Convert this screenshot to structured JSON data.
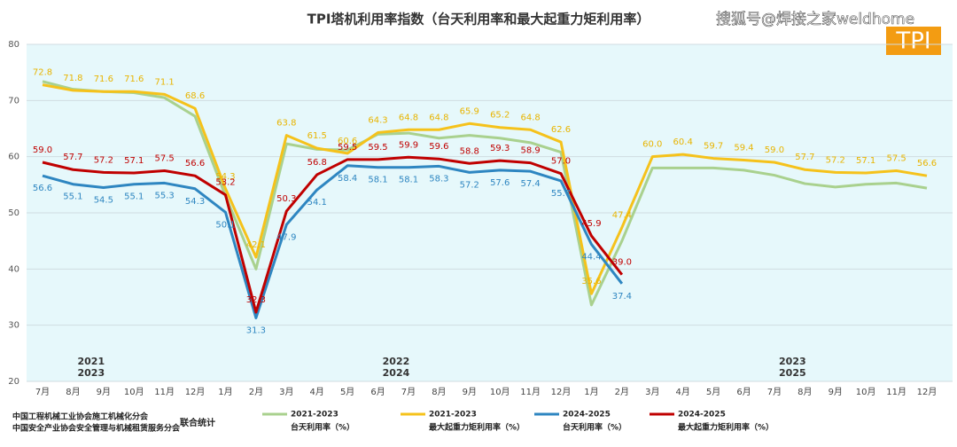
{
  "chart_data": {
    "type": "line",
    "title": "TPI塔机利用率指数（台天利用率和最大起重力矩利用率）",
    "watermark": "搜狐号@焊接之家weldhome",
    "logo": "TPI",
    "categories": [
      "7月",
      "8月",
      "9月",
      "10月",
      "11月",
      "12月",
      "1月",
      "2月",
      "3月",
      "4月",
      "5月",
      "6月",
      "7月",
      "8月",
      "9月",
      "10月",
      "11月",
      "12月",
      "1月",
      "2月",
      "3月",
      "4月",
      "5月",
      "6月",
      "7月",
      "8月",
      "9月",
      "10月",
      "11月",
      "12月"
    ],
    "year_annotations": [
      {
        "index": 2,
        "lines": [
          "2021",
          "2023"
        ]
      },
      {
        "index": 12,
        "lines": [
          "2022",
          "2024"
        ]
      },
      {
        "index": 25,
        "lines": [
          "2023",
          "2025"
        ]
      }
    ],
    "ylim": [
      20,
      80
    ],
    "yticks": [
      20,
      30,
      40,
      50,
      60,
      70,
      80
    ],
    "grid": true,
    "series": [
      {
        "name": "2021-2023",
        "metric": "台天利用率（%）",
        "color": "#a9d18e",
        "label_position": "none",
        "values": [
          73.4,
          72.0,
          71.6,
          71.4,
          70.5,
          67.2,
          53.0,
          40.0,
          62.3,
          61.3,
          61.2,
          64.0,
          64.2,
          63.3,
          63.8,
          63.3,
          62.5,
          60.8,
          33.6,
          45.0,
          58.0,
          58.0,
          58.0,
          57.6,
          56.7,
          55.2,
          54.6,
          55.1,
          55.3,
          54.4
        ]
      },
      {
        "name": "2021-2023",
        "metric": "最大起重力矩利用率（%）",
        "color": "#f5c21b",
        "label_position": "above",
        "label_color": "#e8b400",
        "values": [
          72.8,
          71.8,
          71.6,
          71.6,
          71.1,
          68.6,
          54.3,
          42.1,
          63.8,
          61.5,
          60.6,
          64.3,
          64.8,
          64.8,
          65.9,
          65.2,
          64.8,
          62.6,
          35.6,
          47.4,
          60.0,
          60.4,
          59.7,
          59.4,
          59.0,
          57.7,
          57.2,
          57.1,
          57.5,
          56.6
        ],
        "value_labels": [
          "72.8",
          "71.8",
          "71.6",
          "71.6",
          "71.1",
          "68.6",
          "54.3",
          "42.1",
          "63.8",
          "61.5",
          "60.6",
          "64.3",
          "64.8",
          "64.8",
          "65.9",
          "65.2",
          "64.8",
          "62.6",
          "35.6",
          "47.4",
          "60.0",
          "60.4",
          "59.7",
          "59.4",
          "59.0",
          "57.7",
          "57.2",
          "57.1",
          "57.5",
          "56.6"
        ]
      },
      {
        "name": "2024-2025",
        "metric": "台天利用率（%）",
        "color": "#2e86c1",
        "label_position": "below",
        "label_color": "#2e86c1",
        "values": [
          56.6,
          55.1,
          54.5,
          55.1,
          55.3,
          54.3,
          50.1,
          31.3,
          47.9,
          54.1,
          58.4,
          58.1,
          58.1,
          58.3,
          57.2,
          57.6,
          57.4,
          55.7,
          44.4,
          37.4,
          null,
          null,
          null,
          null,
          null,
          null,
          null,
          null,
          null,
          null
        ],
        "value_labels": [
          "56.6",
          "55.1",
          "54.5",
          "55.1",
          "55.3",
          "54.3",
          "50.1",
          "31.3",
          "47.9",
          "54.1",
          "58.4",
          "58.1",
          "58.1",
          "58.3",
          "57.2",
          "57.6",
          "57.4",
          "55.7",
          "44.4",
          "37.4",
          null,
          null,
          null,
          null,
          null,
          null,
          null,
          null,
          null,
          null
        ]
      },
      {
        "name": "2024-2025",
        "metric": "最大起重力矩利用率（%）",
        "color": "#c00000",
        "label_position": "above",
        "label_color": "#c00000",
        "values": [
          59.0,
          57.7,
          57.2,
          57.1,
          57.5,
          56.6,
          53.2,
          32.3,
          50.3,
          56.8,
          59.5,
          59.5,
          59.9,
          59.6,
          58.8,
          59.3,
          58.9,
          57.0,
          45.9,
          39.0,
          null,
          null,
          null,
          null,
          null,
          null,
          null,
          null,
          null,
          null
        ],
        "value_labels": [
          "59.0",
          "57.7",
          "57.2",
          "57.1",
          "57.5",
          "56.6",
          "53.2",
          "32.3",
          "50.3",
          "56.8",
          "59.5",
          "59.5",
          "59.9",
          "59.6",
          "58.8",
          "59.3",
          "58.9",
          "57.0",
          "45.9",
          "39.0",
          null,
          null,
          null,
          null,
          null,
          null,
          null,
          null,
          null,
          null
        ]
      }
    ],
    "source": [
      "中国工程机械工业协会施工机械化分会",
      "中国安全产业协会安全管理与机械租赁服务分会"
    ],
    "source_note": "联合统计"
  }
}
